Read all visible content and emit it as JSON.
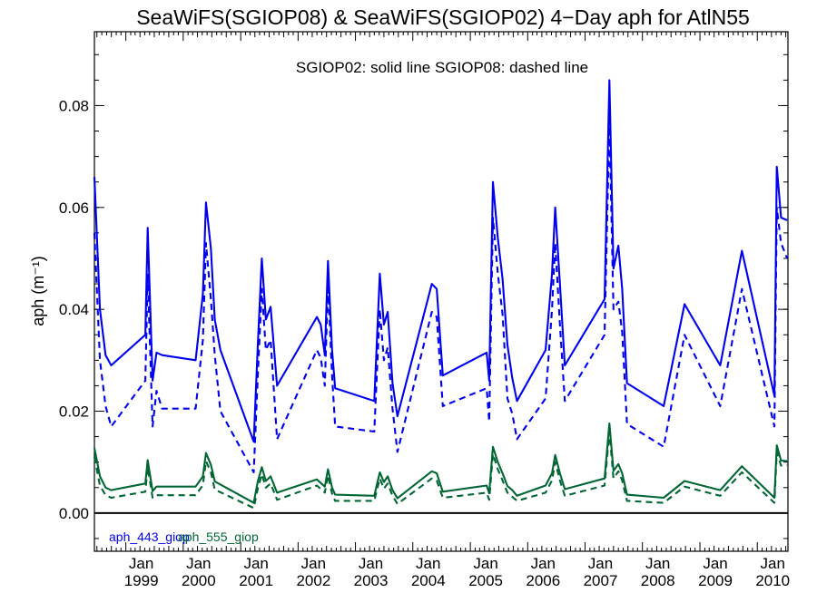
{
  "chart_data": {
    "type": "line",
    "title": "SeaWiFS(SGIOP08) & SeaWiFS(SGIOP02) 4−Day aph for AtlN55",
    "annotation": "SGIOP02: solid line   SGIOP08: dashed line",
    "ylabel": "aph (m⁻¹)",
    "xlabel": "",
    "xlim": [
      "1998-06-15",
      "2010-07-15"
    ],
    "ylim": [
      -0.0075,
      0.0945
    ],
    "grid": false,
    "y_ticks": [
      {
        "value": 0.0,
        "label": "0.00"
      },
      {
        "value": 0.02,
        "label": "0.02"
      },
      {
        "value": 0.04,
        "label": "0.04"
      },
      {
        "value": 0.06,
        "label": "0.06"
      },
      {
        "value": 0.08,
        "label": "0.08"
      }
    ],
    "x_ticks": [
      {
        "date": "1999-01-01",
        "month": "Jan",
        "year": "1999"
      },
      {
        "date": "2000-01-01",
        "month": "Jan",
        "year": "2000"
      },
      {
        "date": "2001-01-01",
        "month": "Jan",
        "year": "2001"
      },
      {
        "date": "2002-01-01",
        "month": "Jan",
        "year": "2002"
      },
      {
        "date": "2003-01-01",
        "month": "Jan",
        "year": "2003"
      },
      {
        "date": "2004-01-01",
        "month": "Jan",
        "year": "2004"
      },
      {
        "date": "2005-01-01",
        "month": "Jan",
        "year": "2005"
      },
      {
        "date": "2006-01-01",
        "month": "Jan",
        "year": "2006"
      },
      {
        "date": "2007-01-01",
        "month": "Jan",
        "year": "2007"
      },
      {
        "date": "2008-01-01",
        "month": "Jan",
        "year": "2008"
      },
      {
        "date": "2009-01-01",
        "month": "Jan",
        "year": "2009"
      },
      {
        "date": "2010-01-01",
        "month": "Jan",
        "year": "2010"
      }
    ],
    "legend": [
      {
        "label": "aph_443_giop",
        "color": "#0000ee"
      },
      {
        "label": "aph_555_giop",
        "color": "#006633"
      }
    ],
    "zero_line": 0.0,
    "series": [
      {
        "name": "aph_443_giop",
        "style": "solid",
        "color": "#0000ee",
        "points": [
          [
            "1998-06-15",
            0.066
          ],
          [
            "1998-07-20",
            0.04
          ],
          [
            "1998-08-25",
            0.031
          ],
          [
            "1998-09-30",
            0.029
          ],
          [
            "1999-05-05",
            0.035
          ],
          [
            "1999-05-20",
            0.056
          ],
          [
            "1999-06-20",
            0.026
          ],
          [
            "1999-07-15",
            0.0315
          ],
          [
            "1999-08-20",
            0.031
          ],
          [
            "2000-03-20",
            0.03
          ],
          [
            "2000-05-05",
            0.043
          ],
          [
            "2000-05-25",
            0.061
          ],
          [
            "2000-06-25",
            0.052
          ],
          [
            "2000-07-20",
            0.038
          ],
          [
            "2000-08-25",
            0.032
          ],
          [
            "2001-03-25",
            0.014
          ],
          [
            "2001-04-20",
            0.033
          ],
          [
            "2001-05-15",
            0.05
          ],
          [
            "2001-06-10",
            0.038
          ],
          [
            "2001-07-10",
            0.0405
          ],
          [
            "2001-08-20",
            0.025
          ],
          [
            "2002-05-01",
            0.0385
          ],
          [
            "2002-05-25",
            0.037
          ],
          [
            "2002-06-20",
            0.031
          ],
          [
            "2002-07-10",
            0.0495
          ],
          [
            "2002-08-05",
            0.032
          ],
          [
            "2002-08-25",
            0.0245
          ],
          [
            "2003-05-01",
            0.022
          ],
          [
            "2003-06-05",
            0.047
          ],
          [
            "2003-07-01",
            0.037
          ],
          [
            "2003-07-25",
            0.0395
          ],
          [
            "2003-08-25",
            0.0255
          ],
          [
            "2003-09-25",
            0.019
          ],
          [
            "2004-05-01",
            0.045
          ],
          [
            "2004-06-01",
            0.044
          ],
          [
            "2004-07-10",
            0.027
          ],
          [
            "2005-04-15",
            0.0315
          ],
          [
            "2005-05-01",
            0.026
          ],
          [
            "2005-05-25",
            0.065
          ],
          [
            "2005-06-25",
            0.054
          ],
          [
            "2005-07-25",
            0.046
          ],
          [
            "2005-08-25",
            0.033
          ],
          [
            "2005-09-25",
            0.0265
          ],
          [
            "2005-10-25",
            0.022
          ],
          [
            "2006-04-25",
            0.032
          ],
          [
            "2006-06-05",
            0.047
          ],
          [
            "2006-06-25",
            0.06
          ],
          [
            "2006-07-25",
            0.045
          ],
          [
            "2006-08-25",
            0.029
          ],
          [
            "2007-05-05",
            0.042
          ],
          [
            "2007-06-05",
            0.085
          ],
          [
            "2007-07-01",
            0.048
          ],
          [
            "2007-08-01",
            0.0525
          ],
          [
            "2007-08-25",
            0.044
          ],
          [
            "2007-09-25",
            0.0255
          ],
          [
            "2008-05-15",
            0.021
          ],
          [
            "2008-09-25",
            0.041
          ],
          [
            "2009-05-10",
            0.029
          ],
          [
            "2009-09-25",
            0.0515
          ],
          [
            "2010-04-20",
            0.023
          ],
          [
            "2010-05-05",
            0.068
          ],
          [
            "2010-06-01",
            0.058
          ],
          [
            "2010-07-10",
            0.0575
          ]
        ]
      },
      {
        "name": "aph_443_giop",
        "style": "dashed",
        "color": "#0000ee",
        "points": [
          [
            "1998-06-15",
            0.055
          ],
          [
            "1998-07-20",
            0.03
          ],
          [
            "1998-08-25",
            0.021
          ],
          [
            "1998-09-30",
            0.017
          ],
          [
            "1999-05-05",
            0.026
          ],
          [
            "1999-05-20",
            0.047
          ],
          [
            "1999-06-20",
            0.017
          ],
          [
            "1999-07-15",
            0.024
          ],
          [
            "1999-08-20",
            0.0205
          ],
          [
            "2000-03-20",
            0.0205
          ],
          [
            "2000-05-05",
            0.034
          ],
          [
            "2000-05-25",
            0.053
          ],
          [
            "2000-06-25",
            0.042
          ],
          [
            "2000-07-20",
            0.031
          ],
          [
            "2000-08-25",
            0.02
          ],
          [
            "2001-03-25",
            0.008
          ],
          [
            "2001-04-20",
            0.027
          ],
          [
            "2001-05-15",
            0.044
          ],
          [
            "2001-06-10",
            0.032
          ],
          [
            "2001-07-10",
            0.034
          ],
          [
            "2001-08-20",
            0.0145
          ],
          [
            "2002-05-01",
            0.032
          ],
          [
            "2002-05-25",
            0.0305
          ],
          [
            "2002-06-20",
            0.025
          ],
          [
            "2002-07-10",
            0.045
          ],
          [
            "2002-08-05",
            0.027
          ],
          [
            "2002-08-25",
            0.017
          ],
          [
            "2003-05-01",
            0.016
          ],
          [
            "2003-06-05",
            0.04
          ],
          [
            "2003-07-01",
            0.03
          ],
          [
            "2003-07-25",
            0.0325
          ],
          [
            "2003-08-25",
            0.0205
          ],
          [
            "2003-09-25",
            0.012
          ],
          [
            "2004-05-01",
            0.0395
          ],
          [
            "2004-06-01",
            0.0385
          ],
          [
            "2004-07-10",
            0.021
          ],
          [
            "2005-04-15",
            0.0245
          ],
          [
            "2005-05-01",
            0.018
          ],
          [
            "2005-05-25",
            0.058
          ],
          [
            "2005-06-25",
            0.047
          ],
          [
            "2005-07-25",
            0.039
          ],
          [
            "2005-08-25",
            0.0225
          ],
          [
            "2005-09-25",
            0.0195
          ],
          [
            "2005-10-25",
            0.0145
          ],
          [
            "2006-04-25",
            0.0225
          ],
          [
            "2006-06-05",
            0.04
          ],
          [
            "2006-06-25",
            0.053
          ],
          [
            "2006-07-25",
            0.037
          ],
          [
            "2006-08-25",
            0.022
          ],
          [
            "2007-05-05",
            0.035
          ],
          [
            "2007-06-05",
            0.077
          ],
          [
            "2007-07-01",
            0.04
          ],
          [
            "2007-08-01",
            0.0415
          ],
          [
            "2007-08-25",
            0.0355
          ],
          [
            "2007-09-25",
            0.0175
          ],
          [
            "2008-05-15",
            0.013
          ],
          [
            "2008-09-25",
            0.035
          ],
          [
            "2009-05-10",
            0.021
          ],
          [
            "2009-09-25",
            0.044
          ],
          [
            "2010-04-20",
            0.017
          ],
          [
            "2010-05-05",
            0.06
          ],
          [
            "2010-06-01",
            0.053
          ],
          [
            "2010-07-10",
            0.05
          ]
        ]
      },
      {
        "name": "aph_555_giop",
        "style": "solid",
        "color": "#006633",
        "points": [
          [
            "1998-06-15",
            0.0128
          ],
          [
            "1998-07-20",
            0.0072
          ],
          [
            "1998-08-25",
            0.005
          ],
          [
            "1998-09-30",
            0.0045
          ],
          [
            "1999-05-05",
            0.0058
          ],
          [
            "1999-05-20",
            0.0104
          ],
          [
            "1999-06-20",
            0.0043
          ],
          [
            "1999-07-15",
            0.0052
          ],
          [
            "2000-03-20",
            0.0052
          ],
          [
            "2000-05-05",
            0.0072
          ],
          [
            "2000-05-25",
            0.0118
          ],
          [
            "2000-06-25",
            0.0095
          ],
          [
            "2000-07-20",
            0.0062
          ],
          [
            "2001-03-25",
            0.002
          ],
          [
            "2001-04-20",
            0.0062
          ],
          [
            "2001-05-15",
            0.009
          ],
          [
            "2001-06-10",
            0.0063
          ],
          [
            "2001-07-10",
            0.0072
          ],
          [
            "2001-08-20",
            0.004
          ],
          [
            "2002-05-01",
            0.0066
          ],
          [
            "2002-06-20",
            0.0052
          ],
          [
            "2002-07-10",
            0.0086
          ],
          [
            "2002-08-05",
            0.005
          ],
          [
            "2002-08-25",
            0.0036
          ],
          [
            "2003-05-01",
            0.0034
          ],
          [
            "2003-06-05",
            0.008
          ],
          [
            "2003-07-01",
            0.0061
          ],
          [
            "2003-07-25",
            0.0072
          ],
          [
            "2003-08-25",
            0.0045
          ],
          [
            "2003-09-25",
            0.0029
          ],
          [
            "2004-05-01",
            0.0082
          ],
          [
            "2004-06-01",
            0.0078
          ],
          [
            "2004-07-10",
            0.0042
          ],
          [
            "2005-04-15",
            0.0054
          ],
          [
            "2005-05-01",
            0.0039
          ],
          [
            "2005-05-25",
            0.013
          ],
          [
            "2005-06-25",
            0.01
          ],
          [
            "2005-07-25",
            0.0078
          ],
          [
            "2005-08-25",
            0.0053
          ],
          [
            "2005-09-25",
            0.0045
          ],
          [
            "2005-10-25",
            0.0034
          ],
          [
            "2006-04-25",
            0.0054
          ],
          [
            "2006-06-05",
            0.0078
          ],
          [
            "2006-06-25",
            0.0114
          ],
          [
            "2006-07-25",
            0.0078
          ],
          [
            "2006-08-25",
            0.0047
          ],
          [
            "2007-05-05",
            0.0068
          ],
          [
            "2007-06-05",
            0.0176
          ],
          [
            "2007-07-01",
            0.0083
          ],
          [
            "2007-08-01",
            0.0096
          ],
          [
            "2007-08-25",
            0.0078
          ],
          [
            "2007-09-25",
            0.0036
          ],
          [
            "2008-05-15",
            0.003
          ],
          [
            "2008-09-25",
            0.0063
          ],
          [
            "2009-05-10",
            0.0045
          ],
          [
            "2009-09-25",
            0.0092
          ],
          [
            "2010-04-20",
            0.003
          ],
          [
            "2010-05-05",
            0.0133
          ],
          [
            "2010-06-01",
            0.0103
          ],
          [
            "2010-07-10",
            0.0102
          ]
        ]
      },
      {
        "name": "aph_555_giop",
        "style": "dashed",
        "color": "#006633",
        "points": [
          [
            "1998-06-15",
            0.011
          ],
          [
            "1998-07-20",
            0.0054
          ],
          [
            "1998-08-25",
            0.0035
          ],
          [
            "1998-09-30",
            0.003
          ],
          [
            "1999-05-05",
            0.0042
          ],
          [
            "1999-05-20",
            0.009
          ],
          [
            "1999-06-20",
            0.003
          ],
          [
            "1999-07-15",
            0.0035
          ],
          [
            "2000-03-20",
            0.0035
          ],
          [
            "2000-05-05",
            0.0055
          ],
          [
            "2000-05-25",
            0.0102
          ],
          [
            "2000-06-25",
            0.008
          ],
          [
            "2000-07-20",
            0.0046
          ],
          [
            "2001-03-25",
            0.001
          ],
          [
            "2001-04-20",
            0.0048
          ],
          [
            "2001-05-15",
            0.0076
          ],
          [
            "2001-06-10",
            0.005
          ],
          [
            "2001-07-10",
            0.0058
          ],
          [
            "2001-08-20",
            0.0026
          ],
          [
            "2002-05-01",
            0.0054
          ],
          [
            "2002-06-20",
            0.004
          ],
          [
            "2002-07-10",
            0.0074
          ],
          [
            "2002-08-05",
            0.0038
          ],
          [
            "2002-08-25",
            0.0024
          ],
          [
            "2003-05-01",
            0.0024
          ],
          [
            "2003-06-05",
            0.0068
          ],
          [
            "2003-07-01",
            0.0048
          ],
          [
            "2003-07-25",
            0.0058
          ],
          [
            "2003-08-25",
            0.0034
          ],
          [
            "2003-09-25",
            0.0018
          ],
          [
            "2004-05-01",
            0.0068
          ],
          [
            "2004-06-01",
            0.0064
          ],
          [
            "2004-07-10",
            0.003
          ],
          [
            "2005-04-15",
            0.004
          ],
          [
            "2005-05-01",
            0.0026
          ],
          [
            "2005-05-25",
            0.0116
          ],
          [
            "2005-06-25",
            0.0086
          ],
          [
            "2005-07-25",
            0.0064
          ],
          [
            "2005-08-25",
            0.004
          ],
          [
            "2005-09-25",
            0.0032
          ],
          [
            "2005-10-25",
            0.0024
          ],
          [
            "2006-04-25",
            0.004
          ],
          [
            "2006-06-05",
            0.0064
          ],
          [
            "2006-06-25",
            0.01
          ],
          [
            "2006-07-25",
            0.0064
          ],
          [
            "2006-08-25",
            0.0034
          ],
          [
            "2007-05-05",
            0.0054
          ],
          [
            "2007-06-05",
            0.016
          ],
          [
            "2007-07-01",
            0.0068
          ],
          [
            "2007-08-01",
            0.0082
          ],
          [
            "2007-08-25",
            0.0064
          ],
          [
            "2007-09-25",
            0.0024
          ],
          [
            "2008-05-15",
            0.002
          ],
          [
            "2008-09-25",
            0.0052
          ],
          [
            "2009-05-10",
            0.0034
          ],
          [
            "2009-09-25",
            0.008
          ],
          [
            "2010-04-20",
            0.002
          ],
          [
            "2010-05-05",
            0.012
          ],
          [
            "2010-06-01",
            0.0093
          ],
          [
            "2010-07-10",
            0.0094
          ]
        ]
      }
    ]
  }
}
